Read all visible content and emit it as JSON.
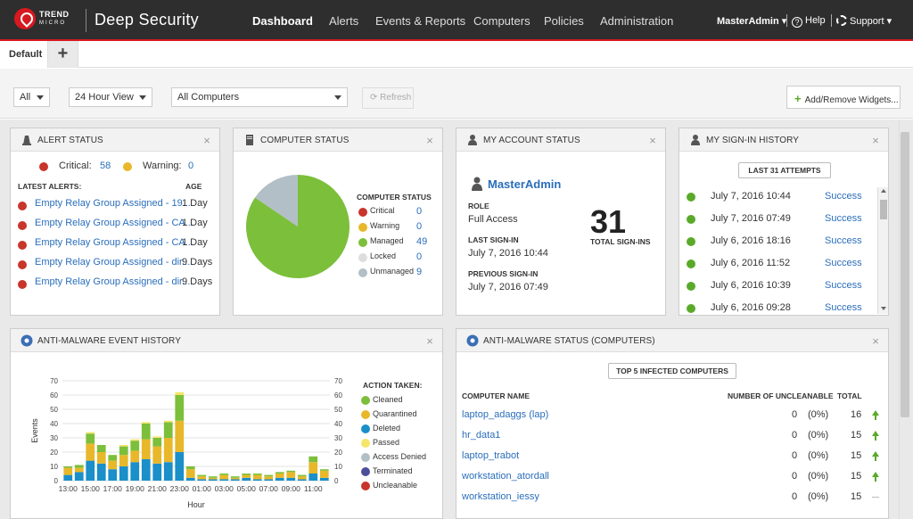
{
  "header": {
    "brand": "TREND",
    "brand_sub": "MICRO",
    "product": "Deep Security",
    "nav": [
      "Dashboard",
      "Alerts",
      "Events & Reports",
      "Computers",
      "Policies",
      "Administration"
    ],
    "active_nav": "Dashboard",
    "user": "MasterAdmin",
    "help": "Help",
    "support": "Support"
  },
  "tabs": {
    "default": "Default",
    "add": "+"
  },
  "toolbar": {
    "filter": "All",
    "view": "24 Hour View",
    "computers": "All Computers",
    "refresh": "Refresh",
    "add_widgets": "Add/Remove Widgets..."
  },
  "alert_status": {
    "title": "Alert Status",
    "critical_label": "Critical:",
    "critical_count": "58",
    "warning_label": "Warning:",
    "warning_count": "0",
    "latest_label": "Latest Alerts:",
    "age_label": "Age",
    "alerts": [
      {
        "text": "Empty Relay Group Assigned - 19...",
        "age": "1 Day"
      },
      {
        "text": "Empty Relay Group Assigned - CA...",
        "age": "1 Day"
      },
      {
        "text": "Empty Relay Group Assigned - CA...",
        "age": "1 Day"
      },
      {
        "text": "Empty Relay Group Assigned - dir...",
        "age": "9 Days"
      },
      {
        "text": "Empty Relay Group Assigned - dir...",
        "age": "9 Days"
      }
    ],
    "colors": {
      "critical": "#c8352a",
      "warning": "#e8b82a"
    }
  },
  "computer_status": {
    "title": "Computer Status",
    "legend_title": "Computer Status",
    "items": [
      {
        "label": "Critical",
        "value": "0",
        "color": "#c8352a"
      },
      {
        "label": "Warning",
        "value": "0",
        "color": "#e8b82a"
      },
      {
        "label": "Managed",
        "value": "49",
        "color": "#7cbf3a"
      },
      {
        "label": "Locked",
        "value": "0",
        "color": "#dddddd"
      },
      {
        "label": "Unmanaged",
        "value": "9",
        "color": "#b3bfc6"
      }
    ]
  },
  "account_status": {
    "title": "My Account Status",
    "user": "MasterAdmin",
    "role_label": "Role",
    "role": "Full Access",
    "last_signin_label": "Last Sign-In",
    "last_signin": "July 7, 2016 10:44",
    "prev_signin_label": "Previous Sign-In",
    "prev_signin": "July 7, 2016 07:49",
    "total": "31",
    "total_label": "Total Sign-Ins"
  },
  "signin_history": {
    "title": "My Sign-In History",
    "button": "Last 31 Attempts",
    "rows": [
      {
        "date": "July 7, 2016 10:44",
        "status": "Success"
      },
      {
        "date": "July 7, 2016 07:49",
        "status": "Success"
      },
      {
        "date": "July 6, 2016 18:16",
        "status": "Success"
      },
      {
        "date": "July 6, 2016 11:52",
        "status": "Success"
      },
      {
        "date": "July 6, 2016 10:39",
        "status": "Success"
      },
      {
        "date": "July 6, 2016 09:28",
        "status": "Success"
      }
    ]
  },
  "antimalware_history": {
    "title": "Anti-Malware Event History",
    "legend_title": "Action Taken:",
    "legend": [
      {
        "label": "Cleaned",
        "color": "#7cbf3a"
      },
      {
        "label": "Quarantined",
        "color": "#e8b82a"
      },
      {
        "label": "Deleted",
        "color": "#1a8fc9"
      },
      {
        "label": "Passed",
        "color": "#f5e56b"
      },
      {
        "label": "Access Denied",
        "color": "#b3bfc6"
      },
      {
        "label": "Terminated",
        "color": "#4b4f9a"
      },
      {
        "label": "Uncleanable",
        "color": "#c8352a"
      }
    ]
  },
  "chart_data": {
    "type": "bar",
    "stacked": true,
    "xlabel": "Hour",
    "ylabel": "Events",
    "ylim": [
      0,
      70
    ],
    "yticks": [
      0,
      10,
      20,
      30,
      40,
      50,
      60,
      70
    ],
    "xtick_labels": [
      "13:00",
      "15:00",
      "17:00",
      "19:00",
      "21:00",
      "23:00",
      "01:00",
      "03:00",
      "05:00",
      "07:00",
      "09:00",
      "11:00"
    ],
    "grid": true,
    "series": [
      {
        "name": "Deleted",
        "values": [
          4,
          6,
          14,
          12,
          8,
          10,
          13,
          15,
          12,
          13,
          20,
          2,
          1,
          1,
          1,
          1,
          2,
          1,
          1,
          2,
          2,
          1,
          5,
          2
        ]
      },
      {
        "name": "Quarantined",
        "values": [
          5,
          3,
          12,
          8,
          6,
          8,
          8,
          14,
          12,
          17,
          22,
          6,
          2,
          1,
          3,
          1,
          2,
          3,
          2,
          3,
          4,
          2,
          8,
          5
        ]
      },
      {
        "name": "Cleaned",
        "values": [
          1,
          2,
          7,
          5,
          4,
          6,
          7,
          11,
          6,
          11,
          18,
          2,
          1,
          1,
          1,
          1,
          1,
          1,
          1,
          1,
          1,
          1,
          4,
          1
        ]
      },
      {
        "name": "Passed",
        "values": [
          0,
          0,
          1,
          0,
          0,
          1,
          1,
          1,
          1,
          1,
          2,
          0,
          0,
          0,
          0,
          0,
          0,
          0,
          0,
          0,
          0,
          0,
          0,
          0
        ]
      }
    ]
  },
  "antimalware_status": {
    "title": "Anti-Malware Status (Computers)",
    "button": "Top 5 Infected Computers",
    "col_name": "Computer Name",
    "col_uncleanable": "Number of Uncleanable",
    "col_total": "Total",
    "rows": [
      {
        "name": "laptop_adaggs (lap)",
        "count": "0",
        "pct": "(0%)",
        "total": "16",
        "trend": "up"
      },
      {
        "name": "hr_data1",
        "count": "0",
        "pct": "(0%)",
        "total": "15",
        "trend": "up"
      },
      {
        "name": "laptop_trabot",
        "count": "0",
        "pct": "(0%)",
        "total": "15",
        "trend": "up"
      },
      {
        "name": "workstation_atordall",
        "count": "0",
        "pct": "(0%)",
        "total": "15",
        "trend": "up"
      },
      {
        "name": "workstation_iessy",
        "count": "0",
        "pct": "(0%)",
        "total": "15",
        "trend": "flat"
      }
    ]
  }
}
